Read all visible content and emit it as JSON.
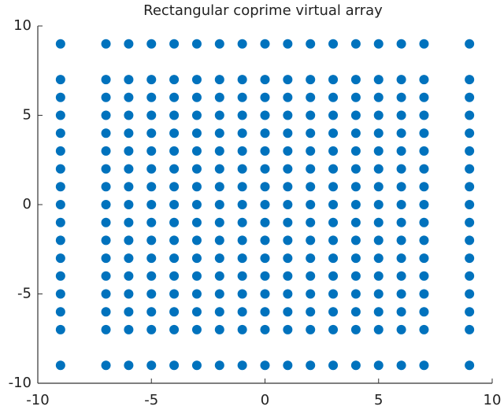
{
  "chart_data": {
    "type": "scatter",
    "title": "Rectangular coprime virtual  array",
    "color": "#0072bd",
    "xlim": [
      -10,
      10
    ],
    "ylim": [
      -10,
      10
    ],
    "xticks": [
      -10,
      -5,
      0,
      5,
      10
    ],
    "yticks": [
      -10,
      -5,
      0,
      5,
      10
    ],
    "x": [
      -9,
      -7,
      -6,
      -5,
      -4,
      -3,
      -2,
      -1,
      0,
      1,
      2,
      3,
      4,
      5,
      6,
      7,
      9,
      -9,
      -7,
      -6,
      -5,
      -4,
      -3,
      -2,
      -1,
      0,
      1,
      2,
      3,
      4,
      5,
      6,
      7,
      9,
      -9,
      -7,
      -6,
      -5,
      -4,
      -3,
      -2,
      -1,
      0,
      1,
      2,
      3,
      4,
      5,
      6,
      7,
      9,
      -9,
      -7,
      -6,
      -5,
      -4,
      -3,
      -2,
      -1,
      0,
      1,
      2,
      3,
      4,
      5,
      6,
      7,
      9,
      -9,
      -7,
      -6,
      -5,
      -4,
      -3,
      -2,
      -1,
      0,
      1,
      2,
      3,
      4,
      5,
      6,
      7,
      9,
      -9,
      -7,
      -6,
      -5,
      -4,
      -3,
      -2,
      -1,
      0,
      1,
      2,
      3,
      4,
      5,
      6,
      7,
      9,
      -9,
      -7,
      -6,
      -5,
      -4,
      -3,
      -2,
      -1,
      0,
      1,
      2,
      3,
      4,
      5,
      6,
      7,
      9,
      -9,
      -7,
      -6,
      -5,
      -4,
      -3,
      -2,
      -1,
      0,
      1,
      2,
      3,
      4,
      5,
      6,
      7,
      9,
      -9,
      -7,
      -6,
      -5,
      -4,
      -3,
      -2,
      -1,
      0,
      1,
      2,
      3,
      4,
      5,
      6,
      7,
      9,
      -9,
      -7,
      -6,
      -5,
      -4,
      -3,
      -2,
      -1,
      0,
      1,
      2,
      3,
      4,
      5,
      6,
      7,
      9,
      -9,
      -7,
      -6,
      -5,
      -4,
      -3,
      -2,
      -1,
      0,
      1,
      2,
      3,
      4,
      5,
      6,
      7,
      9,
      -9,
      -7,
      -6,
      -5,
      -4,
      -3,
      -2,
      -1,
      0,
      1,
      2,
      3,
      4,
      5,
      6,
      7,
      9,
      -9,
      -7,
      -6,
      -5,
      -4,
      -3,
      -2,
      -1,
      0,
      1,
      2,
      3,
      4,
      5,
      6,
      7,
      9,
      -9,
      -7,
      -6,
      -5,
      -4,
      -3,
      -2,
      -1,
      0,
      1,
      2,
      3,
      4,
      5,
      6,
      7,
      9,
      -9,
      -7,
      -6,
      -5,
      -4,
      -3,
      -2,
      -1,
      0,
      1,
      2,
      3,
      4,
      5,
      6,
      7,
      9,
      -9,
      -7,
      -6,
      -5,
      -4,
      -3,
      -2,
      -1,
      0,
      1,
      2,
      3,
      4,
      5,
      6,
      7,
      9,
      -9,
      -7,
      -6,
      -5,
      -4,
      -3,
      -2,
      -1,
      0,
      1,
      2,
      3,
      4,
      5,
      6,
      7,
      9
    ],
    "y": [
      9,
      9,
      9,
      9,
      9,
      9,
      9,
      9,
      9,
      9,
      9,
      9,
      9,
      9,
      9,
      9,
      9,
      7,
      7,
      7,
      7,
      7,
      7,
      7,
      7,
      7,
      7,
      7,
      7,
      7,
      7,
      7,
      7,
      7,
      6,
      6,
      6,
      6,
      6,
      6,
      6,
      6,
      6,
      6,
      6,
      6,
      6,
      6,
      6,
      6,
      6,
      5,
      5,
      5,
      5,
      5,
      5,
      5,
      5,
      5,
      5,
      5,
      5,
      5,
      5,
      5,
      5,
      5,
      4,
      4,
      4,
      4,
      4,
      4,
      4,
      4,
      4,
      4,
      4,
      4,
      4,
      4,
      4,
      4,
      4,
      3,
      3,
      3,
      3,
      3,
      3,
      3,
      3,
      3,
      3,
      3,
      3,
      3,
      3,
      3,
      3,
      3,
      2,
      2,
      2,
      2,
      2,
      2,
      2,
      2,
      2,
      2,
      2,
      2,
      2,
      2,
      2,
      2,
      2,
      1,
      1,
      1,
      1,
      1,
      1,
      1,
      1,
      1,
      1,
      1,
      1,
      1,
      1,
      1,
      1,
      1,
      0,
      0,
      0,
      0,
      0,
      0,
      0,
      0,
      0,
      0,
      0,
      0,
      0,
      0,
      0,
      0,
      0,
      -1,
      -1,
      -1,
      -1,
      -1,
      -1,
      -1,
      -1,
      -1,
      -1,
      -1,
      -1,
      -1,
      -1,
      -1,
      -1,
      -1,
      -2,
      -2,
      -2,
      -2,
      -2,
      -2,
      -2,
      -2,
      -2,
      -2,
      -2,
      -2,
      -2,
      -2,
      -2,
      -2,
      -2,
      -3,
      -3,
      -3,
      -3,
      -3,
      -3,
      -3,
      -3,
      -3,
      -3,
      -3,
      -3,
      -3,
      -3,
      -3,
      -3,
      -3,
      -4,
      -4,
      -4,
      -4,
      -4,
      -4,
      -4,
      -4,
      -4,
      -4,
      -4,
      -4,
      -4,
      -4,
      -4,
      -4,
      -4,
      -5,
      -5,
      -5,
      -5,
      -5,
      -5,
      -5,
      -5,
      -5,
      -5,
      -5,
      -5,
      -5,
      -5,
      -5,
      -5,
      -5,
      -6,
      -6,
      -6,
      -6,
      -6,
      -6,
      -6,
      -6,
      -6,
      -6,
      -6,
      -6,
      -6,
      -6,
      -6,
      -6,
      -6,
      -7,
      -7,
      -7,
      -7,
      -7,
      -7,
      -7,
      -7,
      -7,
      -7,
      -7,
      -7,
      -7,
      -7,
      -7,
      -7,
      -7,
      -9,
      -9,
      -9,
      -9,
      -9,
      -9,
      -9,
      -9,
      -9,
      -9,
      -9,
      -9,
      -9,
      -9,
      -9,
      -9,
      -9
    ]
  }
}
